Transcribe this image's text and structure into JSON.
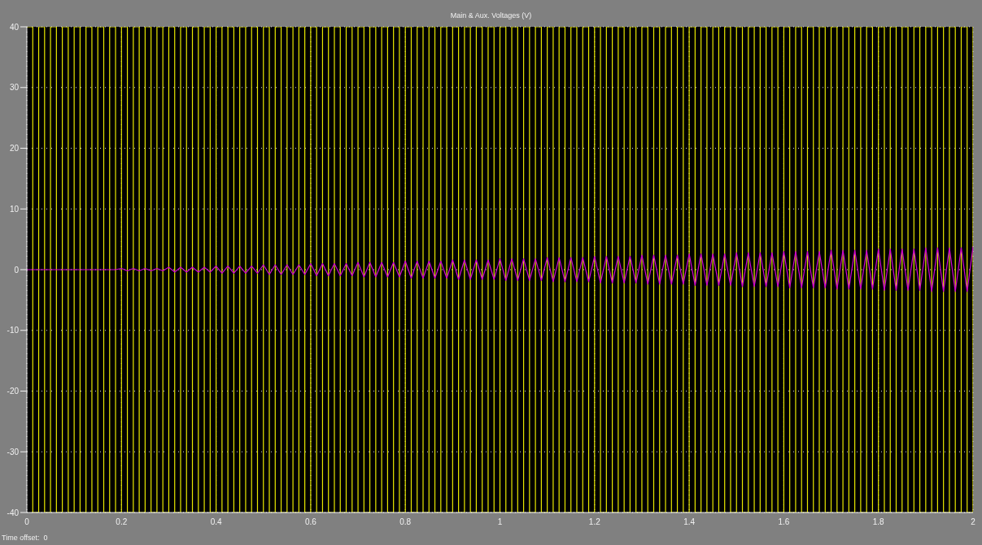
{
  "chart_data": {
    "type": "line",
    "title": "Main & Aux. Voltages (V)",
    "annotations": [
      "Time offset:  0"
    ],
    "x": [
      0,
      0.0125,
      0.025,
      0.0375,
      0.05,
      0.0625,
      0.075,
      0.0875,
      0.1,
      0.1125,
      0.125,
      0.1375,
      0.15,
      0.1625,
      0.175,
      0.1875,
      0.2,
      0.2125,
      0.225,
      0.2375,
      0.25,
      0.2625,
      0.275,
      0.2875,
      0.3,
      0.3125,
      0.325,
      0.3375,
      0.35,
      0.3625,
      0.375,
      0.3875,
      0.4,
      0.4125,
      0.425,
      0.4375,
      0.45,
      0.4625,
      0.475,
      0.4875,
      0.5,
      0.5125,
      0.525,
      0.5375,
      0.55,
      0.5625,
      0.575,
      0.5875,
      0.6,
      0.6125,
      0.625,
      0.6375,
      0.65,
      0.6625,
      0.675,
      0.6875,
      0.7,
      0.7125,
      0.725,
      0.7375,
      0.75,
      0.7625,
      0.775,
      0.7875,
      0.8,
      0.8125,
      0.825,
      0.8375,
      0.85,
      0.8625,
      0.875,
      0.8875,
      0.9,
      0.9125,
      0.925,
      0.9375,
      0.95,
      0.9625,
      0.975,
      0.9875,
      1,
      1.0125,
      1.025,
      1.0375,
      1.05,
      1.0625,
      1.075,
      1.0875,
      1.1,
      1.1125,
      1.125,
      1.1375,
      1.15,
      1.1625,
      1.175,
      1.1875,
      1.2,
      1.2125,
      1.225,
      1.2375,
      1.25,
      1.2625,
      1.275,
      1.2875,
      1.3,
      1.3125,
      1.325,
      1.3375,
      1.35,
      1.3625,
      1.375,
      1.3875,
      1.4,
      1.4125,
      1.425,
      1.4375,
      1.45,
      1.4625,
      1.475,
      1.4875,
      1.5,
      1.5125,
      1.525,
      1.5375,
      1.55,
      1.5625,
      1.575,
      1.5875,
      1.6,
      1.6125,
      1.625,
      1.6375,
      1.65,
      1.6625,
      1.675,
      1.6875,
      1.7,
      1.7125,
      1.725,
      1.7375,
      1.75,
      1.7625,
      1.775,
      1.7875,
      1.8,
      1.8125,
      1.825,
      1.8375,
      1.85,
      1.8625,
      1.875,
      1.8875,
      1.9,
      1.9125,
      1.925,
      1.9375,
      1.95,
      1.9625,
      1.975,
      1.9875,
      2
    ],
    "series": [
      {
        "type": "step",
        "color": "#e8e800",
        "values": [
          40,
          -40,
          40,
          -40,
          40,
          -40,
          40,
          -40,
          40,
          -40,
          40,
          -40,
          40,
          -40,
          40,
          -40,
          40,
          -40,
          40,
          -40,
          40,
          -40,
          40,
          -40,
          40,
          -40,
          40,
          -40,
          40,
          -40,
          40,
          -40,
          40,
          -40,
          40,
          -40,
          40,
          -40,
          40,
          -40,
          40,
          -40,
          40,
          -40,
          40,
          -40,
          40,
          -40,
          40,
          -40,
          40,
          -40,
          40,
          -40,
          40,
          -40,
          40,
          -40,
          40,
          -40,
          40,
          -40,
          40,
          -40,
          40,
          -40,
          40,
          -40,
          40,
          -40,
          40,
          -40,
          40,
          -40,
          40,
          -40,
          40,
          -40,
          40,
          -40,
          40,
          -40,
          40,
          -40,
          40,
          -40,
          40,
          -40,
          40,
          -40,
          40,
          -40,
          40,
          -40,
          40,
          -40,
          40,
          -40,
          40,
          -40,
          40,
          -40,
          40,
          -40,
          40,
          -40,
          40,
          -40,
          40,
          -40,
          40,
          -40,
          40,
          -40,
          40,
          -40,
          40,
          -40,
          40,
          -40,
          40,
          -40,
          40,
          -40,
          40,
          -40,
          40,
          -40,
          40,
          -40,
          40,
          -40,
          40,
          -40,
          40,
          -40,
          40,
          -40,
          40,
          -40,
          40,
          -40,
          40,
          -40,
          40,
          -40,
          40,
          -40,
          40,
          -40,
          40,
          -40,
          40,
          -40,
          40,
          -40,
          40,
          -40,
          40,
          -40,
          40
        ]
      },
      {
        "color": "#d000d0",
        "values": [
          0,
          0,
          0,
          0,
          0,
          0,
          0,
          0,
          0,
          0,
          0,
          0,
          0,
          0,
          0,
          0,
          0.2,
          -0.2,
          0.2,
          -0.2,
          0.2,
          -0.2,
          0.2,
          -0.2,
          0.4,
          -0.4,
          0.4,
          -0.4,
          0.4,
          -0.4,
          0.4,
          -0.4,
          0.6,
          -0.6,
          0.6,
          -0.6,
          0.6,
          -0.6,
          0.6,
          -0.6,
          0.8,
          -0.8,
          0.8,
          -0.8,
          0.8,
          -0.8,
          0.8,
          -0.8,
          1,
          -1,
          1,
          -1,
          1,
          -1,
          1,
          -1,
          1.2,
          -1.2,
          1.2,
          -1.2,
          1.2,
          -1.2,
          1.2,
          -1.2,
          1.4,
          -1.4,
          1.4,
          -1.4,
          1.4,
          -1.4,
          1.4,
          -1.4,
          1.6,
          -1.6,
          1.6,
          -1.6,
          1.6,
          -1.6,
          1.6,
          -1.6,
          1.8,
          -1.8,
          1.8,
          -1.8,
          1.8,
          -1.8,
          1.8,
          -1.8,
          2,
          -2,
          2,
          -2,
          2,
          -2,
          2,
          -2,
          2.2,
          -2.2,
          2.2,
          -2.2,
          2.2,
          -2.2,
          2.2,
          -2.2,
          2.4,
          -2.4,
          2.4,
          -2.4,
          2.4,
          -2.4,
          2.4,
          -2.4,
          2.6,
          -2.6,
          2.6,
          -2.6,
          2.6,
          -2.6,
          2.6,
          -2.6,
          2.8,
          -2.8,
          2.8,
          -2.8,
          2.8,
          -2.8,
          2.8,
          -2.8,
          3,
          -3,
          3,
          -3,
          3,
          -3,
          3,
          -3,
          3.2,
          -3.2,
          3.2,
          -3.2,
          3.2,
          -3.2,
          3.2,
          -3.2,
          3.4,
          -3.4,
          3.4,
          -3.4,
          3.4,
          -3.4,
          3.4,
          -3.4,
          3.6,
          -3.6,
          3.6,
          -3.6,
          3.6,
          -3.6,
          3.6,
          -3.6,
          3.8
        ]
      }
    ],
    "xlim": [
      0,
      2
    ],
    "xticks": [
      0,
      0.2,
      0.4,
      0.6,
      0.8,
      1,
      1.2,
      1.4,
      1.6,
      1.8,
      2
    ],
    "ylim": [
      -40,
      40
    ],
    "yticks": [
      -40,
      -30,
      -20,
      -10,
      0,
      10,
      20,
      30,
      40
    ],
    "grid": true,
    "marker": "none",
    "line_style": "solid"
  }
}
